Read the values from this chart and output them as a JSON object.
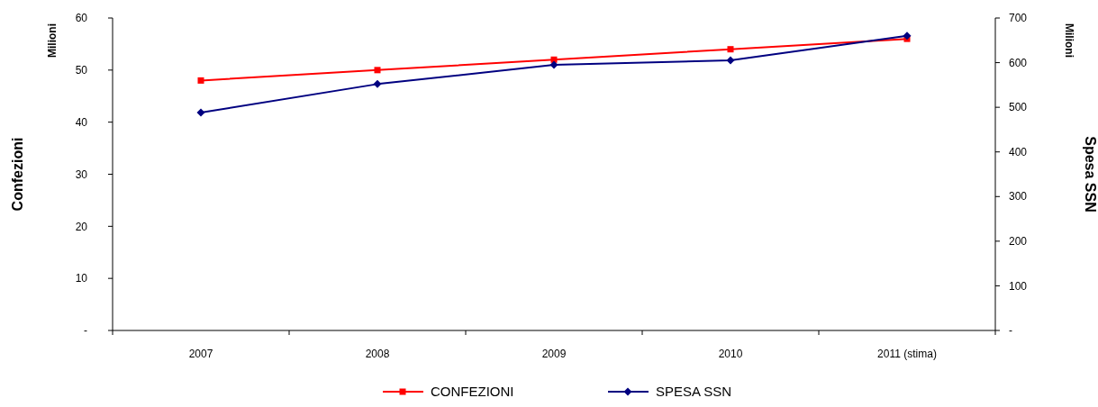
{
  "chart_data": {
    "type": "line",
    "categories": [
      "2007",
      "2008",
      "2009",
      "2010",
      "2011 (stima)"
    ],
    "series": [
      {
        "name": "CONFEZIONI",
        "color": "#ff0000",
        "marker": "square",
        "values": [
          48,
          50,
          52,
          54,
          56
        ]
      },
      {
        "name": "SPESA SSN",
        "color": "#000080",
        "marker": "diamond",
        "axis": "y2",
        "values": [
          488,
          552,
          595,
          605,
          660
        ]
      }
    ],
    "ylabel": "Confezioni",
    "y2label": "Spesa SSN",
    "annotations": [
      "Milioni",
      "Milioni"
    ],
    "ylim": [
      0,
      60
    ],
    "yticks": [
      {
        "value": 0,
        "label": "-"
      },
      10,
      20,
      30,
      40,
      50,
      60
    ],
    "y2lim": [
      0,
      700
    ],
    "y2ticks": [
      {
        "value": 0,
        "label": "-"
      },
      100,
      200,
      300,
      400,
      500,
      600,
      700
    ],
    "legend": "bottom",
    "grid": false
  }
}
